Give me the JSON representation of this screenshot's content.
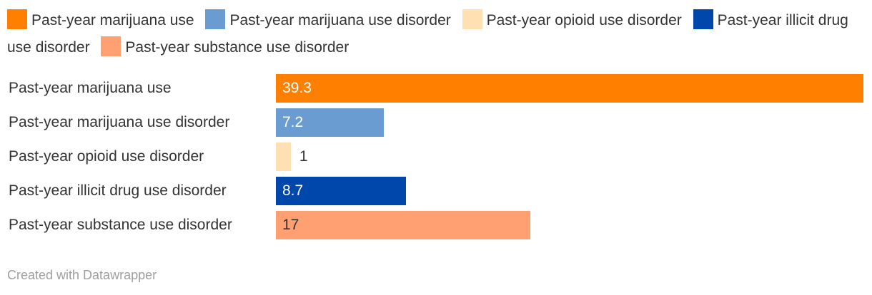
{
  "chart_data": {
    "type": "bar",
    "orientation": "horizontal",
    "categories": [
      "Past-year marijuana use",
      "Past-year marijuana use disorder",
      "Past-year opioid use disorder",
      "Past-year illicit drug use disorder",
      "Past-year substance use disorder"
    ],
    "values": [
      39.3,
      7.2,
      1,
      8.7,
      17
    ],
    "value_labels": [
      "39.3",
      "7.2",
      "1",
      "8.7",
      "17"
    ],
    "colors": [
      "#FF7F00",
      "#6A9BD1",
      "#FFE0B3",
      "#0047AB",
      "#FFA073"
    ],
    "value_label_colors": [
      "#ffffff",
      "#ffffff",
      "#333333",
      "#ffffff",
      "#333333"
    ],
    "legend": [
      {
        "label": "Past-year marijuana use",
        "color": "#FF7F00"
      },
      {
        "label": "Past-year marijuana use disorder",
        "color": "#6A9BD1"
      },
      {
        "label": "Past-year opioid use disorder",
        "color": "#FFE0B3"
      },
      {
        "label": "Past-year illicit drug use disorder",
        "color": "#0047AB"
      },
      {
        "label": "Past-year substance use disorder",
        "color": "#FFA073"
      }
    ],
    "xlim": [
      0,
      39.3
    ],
    "legend_position": "top-left",
    "grid": false
  },
  "footer": {
    "credit": "Created with Datawrapper"
  }
}
